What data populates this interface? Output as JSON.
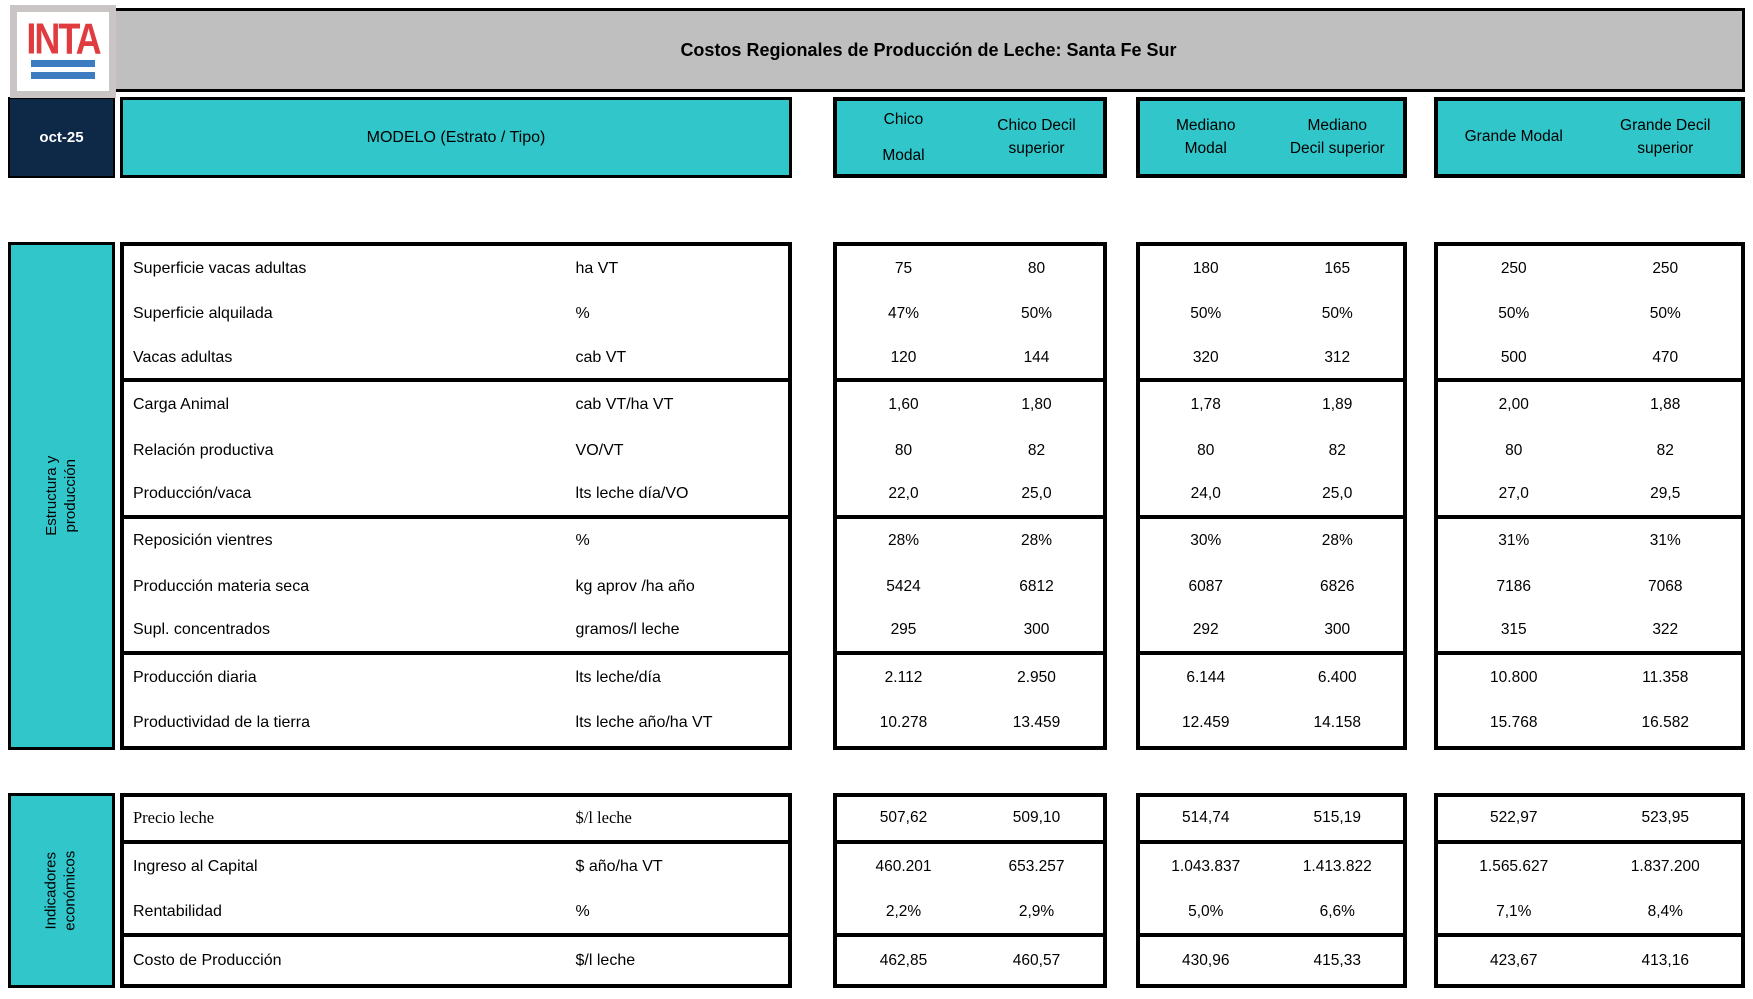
{
  "header": {
    "logo_text": "INTA",
    "title": "Costos Regionales de Producción de Leche: Santa Fe Sur",
    "date_label": "oct-25",
    "model_label": "MODELO (Estrato / Tipo)",
    "groups": [
      {
        "name": "Chico",
        "cells": [
          "Chico\nModal",
          "Chico Decil\nsuperior"
        ]
      },
      {
        "name": "Mediano",
        "cells": [
          "Mediano\nModal",
          "Mediano\nDecil superior"
        ]
      },
      {
        "name": "Grande",
        "cells": [
          "Grande Modal",
          "Grande Decil\nsuperior"
        ]
      }
    ]
  },
  "colors": {
    "teal": "#31c6ca",
    "navy": "#0e2848",
    "banner_gray": "#bfbfbf",
    "logo_red": "#e03c40",
    "logo_blue": "#3c7cc1"
  },
  "blocks": [
    {
      "side_label": "Estructura y producción",
      "group_ends": [
        2,
        5,
        8
      ],
      "rows": [
        {
          "label": "Superficie vacas adultas",
          "unit": "ha VT",
          "values": [
            "75",
            "80",
            "180",
            "165",
            "250",
            "250"
          ]
        },
        {
          "label": "Superficie alquilada",
          "unit": "%",
          "values": [
            "47%",
            "50%",
            "50%",
            "50%",
            "50%",
            "50%"
          ]
        },
        {
          "label": "Vacas adultas",
          "unit": "cab VT",
          "values": [
            "120",
            "144",
            "320",
            "312",
            "500",
            "470"
          ]
        },
        {
          "label": "Carga Animal",
          "unit": "cab VT/ha VT",
          "values": [
            "1,60",
            "1,80",
            "1,78",
            "1,89",
            "2,00",
            "1,88"
          ]
        },
        {
          "label": "Relación productiva",
          "unit": "VO/VT",
          "values": [
            "80",
            "82",
            "80",
            "82",
            "80",
            "82"
          ]
        },
        {
          "label": "Producción/vaca",
          "unit": "lts leche día/VO",
          "values": [
            "22,0",
            "25,0",
            "24,0",
            "25,0",
            "27,0",
            "29,5"
          ]
        },
        {
          "label": "Reposición vientres",
          "unit": "%",
          "values": [
            "28%",
            "28%",
            "30%",
            "28%",
            "31%",
            "31%"
          ]
        },
        {
          "label": "Producción materia seca",
          "unit": "kg aprov /ha año",
          "values": [
            "5424",
            "6812",
            "6087",
            "6826",
            "7186",
            "7068"
          ]
        },
        {
          "label": "Supl. concentrados",
          "unit": "gramos/l leche",
          "values": [
            "295",
            "300",
            "292",
            "300",
            "315",
            "322"
          ]
        },
        {
          "label": "Producción diaria",
          "unit": "lts leche/día",
          "values": [
            "2.112",
            "2.950",
            "6.144",
            "6.400",
            "10.800",
            "11.358"
          ]
        },
        {
          "label": "Productividad de la tierra",
          "unit": "lts leche año/ha VT",
          "values": [
            "10.278",
            "13.459",
            "12.459",
            "14.158",
            "15.768",
            "16.582"
          ]
        }
      ]
    },
    {
      "side_label": "Indicadores\neconómicos",
      "group_ends": [
        0,
        2
      ],
      "rows": [
        {
          "label": "Precio leche",
          "unit": "$/l leche",
          "serif": true,
          "values": [
            "507,62",
            "509,10",
            "514,74",
            "515,19",
            "522,97",
            "523,95"
          ]
        },
        {
          "label": "Ingreso al Capital",
          "unit": "$ año/ha VT",
          "values": [
            "460.201",
            "653.257",
            "1.043.837",
            "1.413.822",
            "1.565.627",
            "1.837.200"
          ]
        },
        {
          "label": "Rentabilidad",
          "unit": "%",
          "values": [
            "2,2%",
            "2,9%",
            "5,0%",
            "6,6%",
            "7,1%",
            "8,4%"
          ]
        },
        {
          "label": "Costo de Producción",
          "unit": "$/l leche",
          "values": [
            "462,85",
            "460,57",
            "430,96",
            "415,33",
            "423,67",
            "413,16"
          ]
        }
      ]
    }
  ]
}
